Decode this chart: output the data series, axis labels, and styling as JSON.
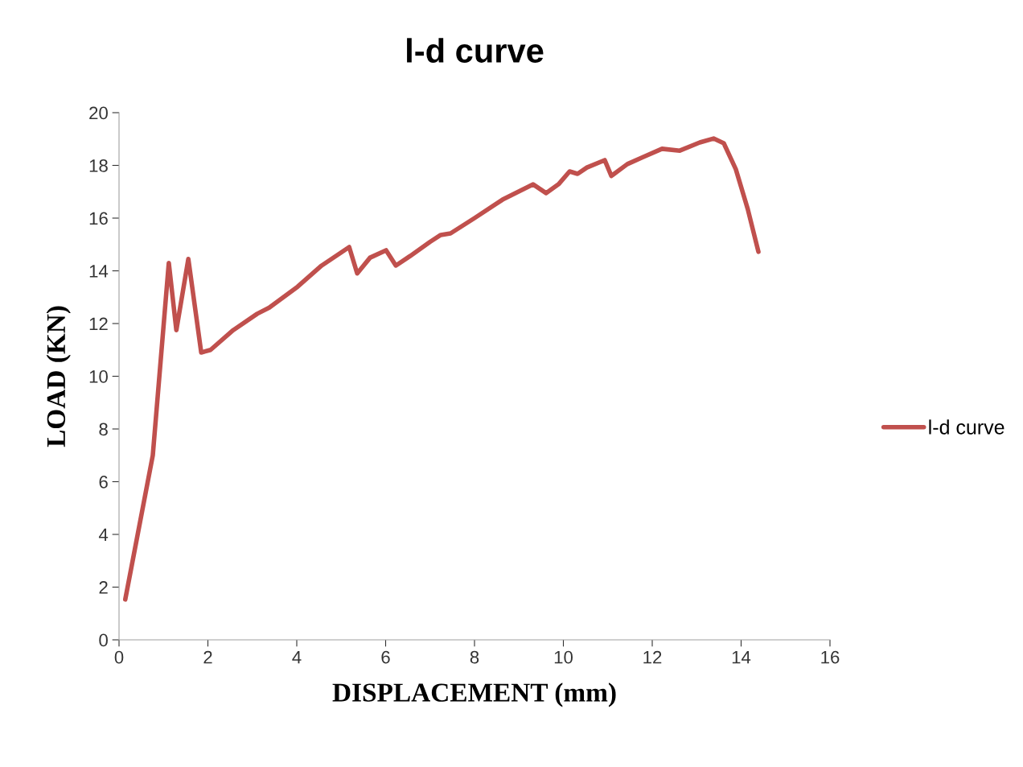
{
  "chart_data": {
    "type": "line",
    "title": "l-d curve",
    "xlabel": "DISPLACEMENT (mm)",
    "ylabel": "LOAD (KN)",
    "xlim": [
      0,
      16
    ],
    "xticks": [
      0,
      2,
      4,
      6,
      8,
      10,
      12,
      14,
      16
    ],
    "ylim": [
      0,
      20
    ],
    "yticks": [
      0,
      2,
      4,
      6,
      8,
      10,
      12,
      14,
      16,
      18,
      20
    ],
    "grid": false,
    "legend": "right",
    "marker": "none",
    "line_style": "solid",
    "series": [
      {
        "name": "l-d curve",
        "color": "#c0504d",
        "x": [
          0.14,
          0.76,
          1.12,
          1.29,
          1.56,
          1.85,
          2.06,
          2.57,
          3.11,
          3.38,
          4.02,
          4.56,
          5.18,
          5.36,
          5.65,
          6.01,
          6.23,
          6.55,
          7.0,
          7.24,
          7.46,
          8.0,
          8.63,
          9.32,
          9.61,
          9.9,
          10.14,
          10.32,
          10.53,
          10.93,
          11.08,
          11.44,
          11.8,
          12.22,
          12.62,
          13.07,
          13.38,
          13.61,
          13.88,
          14.15,
          14.39
        ],
        "values": [
          1.53,
          7.0,
          14.3,
          11.75,
          14.45,
          10.9,
          11.0,
          11.75,
          12.37,
          12.6,
          13.4,
          14.2,
          14.9,
          13.9,
          14.5,
          14.78,
          14.2,
          14.56,
          15.1,
          15.36,
          15.42,
          16.0,
          16.7,
          17.28,
          16.95,
          17.3,
          17.77,
          17.68,
          17.92,
          18.2,
          17.6,
          18.05,
          18.32,
          18.63,
          18.56,
          18.87,
          19.02,
          18.84,
          17.86,
          16.34,
          14.72
        ]
      }
    ]
  }
}
